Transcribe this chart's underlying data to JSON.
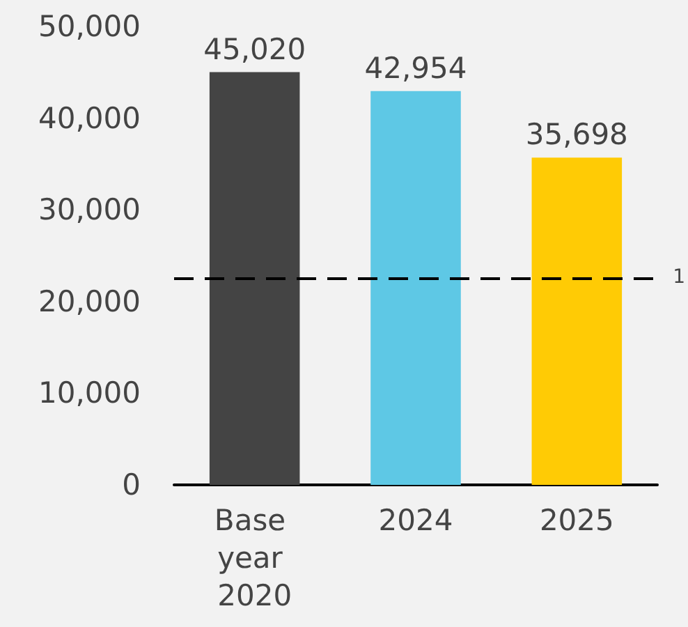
{
  "chart_data": {
    "type": "bar",
    "categories": [
      "Base year 2020",
      "2024",
      "2025"
    ],
    "values": [
      45020,
      42954,
      35698
    ],
    "value_labels": [
      "45,020",
      "42,954",
      "35,698"
    ],
    "colors": [
      "#444444",
      "#5ec8e5",
      "#ffcb05"
    ],
    "ylim": [
      0,
      50000
    ],
    "yticks": [
      {
        "value": 0,
        "label": "0"
      },
      {
        "value": 10000,
        "label": "10,000"
      },
      {
        "value": 20000,
        "label": "20,000"
      },
      {
        "value": 30000,
        "label": "30,000"
      },
      {
        "value": 40000,
        "label": "40,000"
      },
      {
        "value": 50000,
        "label": "50,000"
      }
    ],
    "grid": false,
    "ref_lines": [
      {
        "axis": "y",
        "value": 22500,
        "color": "#000000",
        "line_style": "dashed"
      }
    ],
    "annotations": [
      "1"
    ]
  }
}
